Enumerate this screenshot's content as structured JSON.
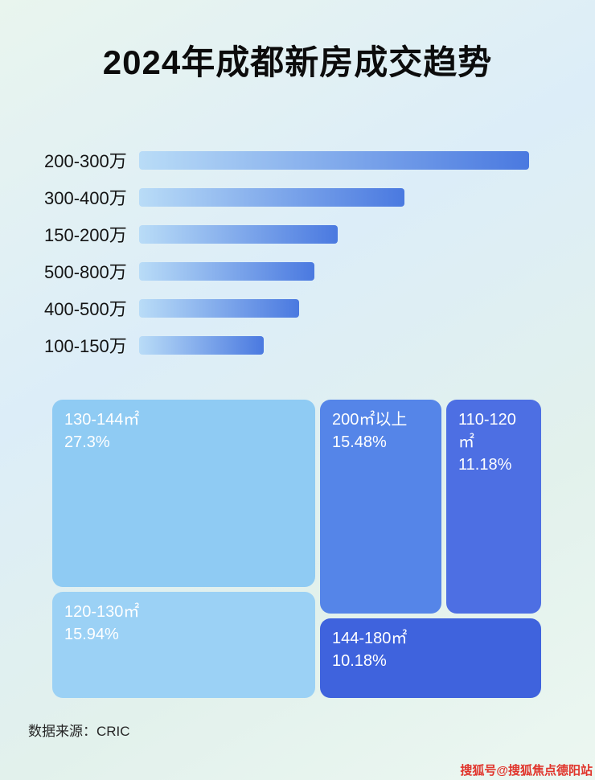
{
  "page": {
    "title": "2024年成都新房成交趋势",
    "source_label": "数据来源：CRIC",
    "watermark": "搜狐号@搜狐焦点德阳站"
  },
  "colors": {
    "bar_gradient_start": "#b9dcf7",
    "bar_gradient_end": "#4a79e0",
    "title_color": "#0c0c0c",
    "watermark_color": "#e0342b",
    "background_tint_top": "#e9f5ee",
    "background_tint_mid": "#dcedf8"
  },
  "chart_data": [
    {
      "type": "bar",
      "orientation": "horizontal",
      "categories": [
        "200-300万",
        "300-400万",
        "150-200万",
        "500-800万",
        "400-500万",
        "100-150万"
      ],
      "values": [
        100,
        68,
        51,
        45,
        41,
        32
      ],
      "values_note": "relative bar lengths, longest bar = 100 (no numeric axis or data labels shown)",
      "xlabel": "",
      "ylabel": "",
      "grid": false,
      "legend": false
    },
    {
      "type": "treemap",
      "blocks": [
        {
          "label": "130-144㎡",
          "percent": "27.3%",
          "value": 27.3,
          "color": "#8fcbf3"
        },
        {
          "label": "200㎡以上",
          "percent": "15.48%",
          "value": 15.48,
          "color": "#5585e8"
        },
        {
          "label": "110-120㎡",
          "percent": "11.18%",
          "value": 11.18,
          "color": "#4d6fe3"
        },
        {
          "label": "120-130㎡",
          "percent": "15.94%",
          "value": 15.94,
          "color": "#9bd1f5"
        },
        {
          "label": "144-180㎡",
          "percent": "10.18%",
          "value": 10.18,
          "color": "#3f63dd"
        }
      ]
    }
  ]
}
